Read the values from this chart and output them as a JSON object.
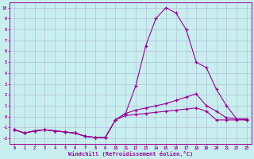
{
  "x": [
    0,
    1,
    2,
    3,
    4,
    5,
    6,
    7,
    8,
    9,
    10,
    11,
    12,
    13,
    14,
    15,
    16,
    17,
    18,
    19,
    20,
    21,
    22,
    23
  ],
  "line1": [
    -1.2,
    -1.5,
    -1.3,
    -1.2,
    -1.3,
    -1.4,
    -1.5,
    -1.8,
    -1.9,
    -1.9,
    -0.3,
    0.3,
    2.8,
    6.5,
    9.0,
    10.0,
    9.5,
    8.0,
    5.0,
    4.5,
    2.5,
    1.0,
    -0.2,
    -0.3
  ],
  "line2": [
    -1.2,
    -1.5,
    -1.3,
    -1.2,
    -1.3,
    -1.4,
    -1.5,
    -1.8,
    -1.9,
    -1.9,
    -0.3,
    0.3,
    0.6,
    0.8,
    1.0,
    1.2,
    1.5,
    1.8,
    2.1,
    1.0,
    0.5,
    -0.1,
    -0.2,
    -0.2
  ],
  "line3": [
    -1.2,
    -1.5,
    -1.3,
    -1.2,
    -1.3,
    -1.4,
    -1.5,
    -1.8,
    -1.9,
    -1.9,
    -0.3,
    0.1,
    0.2,
    0.3,
    0.4,
    0.5,
    0.6,
    0.7,
    0.8,
    0.5,
    -0.3,
    -0.3,
    -0.3,
    -0.3
  ],
  "color": "#990099",
  "bg_color": "#c8eef0",
  "grid_color": "#aaaacc",
  "yticks": [
    -2,
    -1,
    0,
    1,
    2,
    3,
    4,
    5,
    6,
    7,
    8,
    9,
    10
  ],
  "xlabel": "Windchill (Refroidissement éolien,°C)",
  "ylim": [
    -2.5,
    10.5
  ],
  "xlim": [
    -0.5,
    23.5
  ]
}
